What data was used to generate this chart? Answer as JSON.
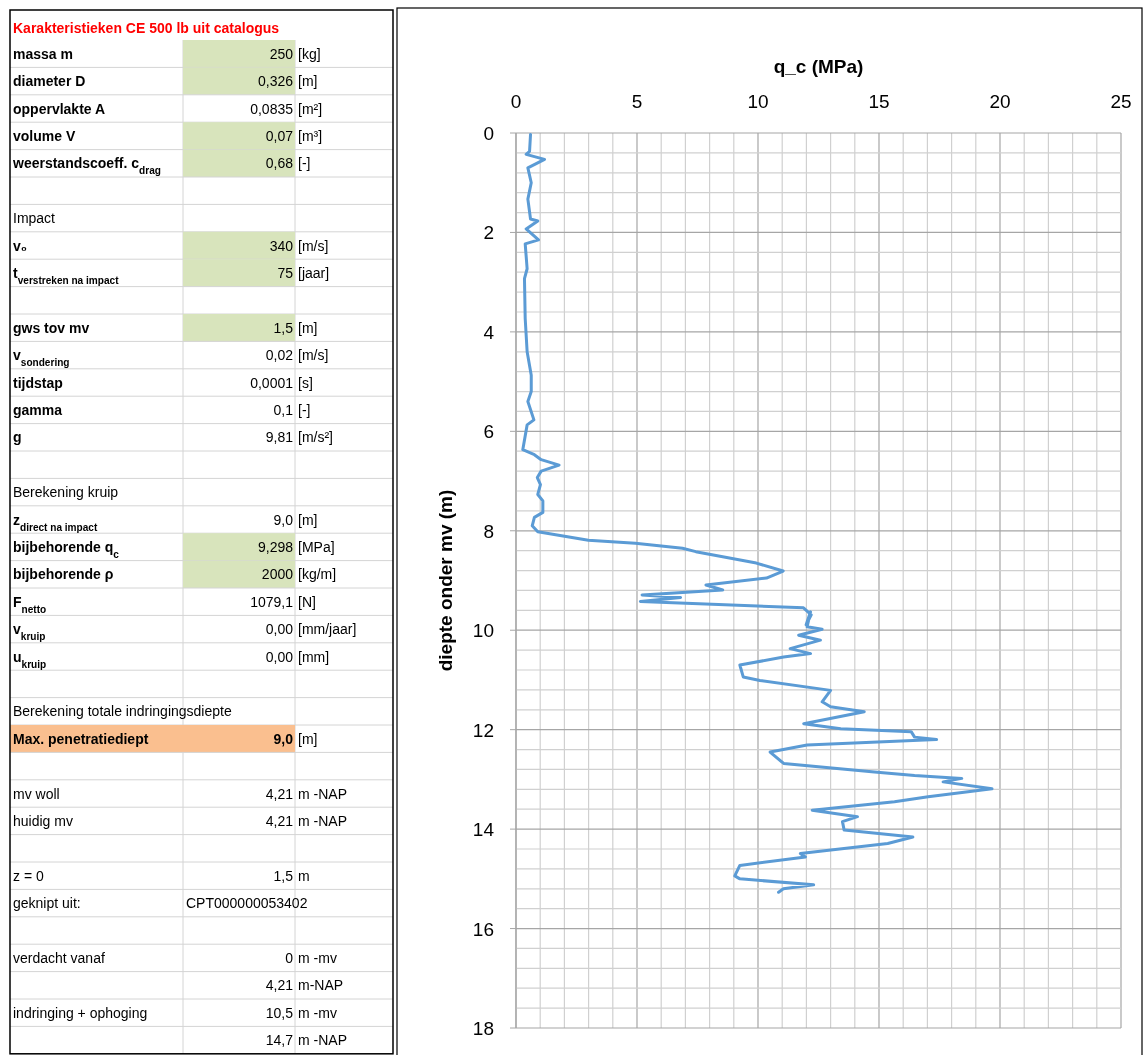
{
  "chart_data": [
    {
      "type": "other",
      "title": "Karakteristieken CE  500 lb uit catalogus",
      "y_categories": [
        "massa m",
        "diameter D",
        "oppervlakte A",
        "volume V",
        "weerstandscoeff. c$_{drag}$",
        null,
        "Impact",
        "v₀",
        "t$_{verstreken na impact}$",
        null,
        "gws tov mv",
        "v$_{sondering}$",
        "tijdstap",
        "gamma",
        "g",
        null,
        "Berekening kruip",
        "z$_{direct na impact}$",
        "bijbehorende q$_{c}$",
        "bijbehorende ρ",
        "F$_{netto}$",
        "v$_{kruip}$",
        "u$_{kruip}$",
        null,
        "Berekening totale indringingsdiepte",
        "Max. penetratiediept",
        null,
        "mv woll",
        "huidig mv",
        null,
        "z = 0",
        "geknipt uit:",
        null,
        "verdacht vanaf",
        null,
        "indringing + ophoging",
        null
      ],
      "cell_labels": [
        [
          "250",
          "[kg]"
        ],
        [
          "0,326",
          "[m]"
        ],
        [
          "0,0835",
          "[m²]"
        ],
        [
          "0,07",
          "[m³]"
        ],
        [
          "0,68",
          "[-]"
        ],
        [
          null,
          null
        ],
        [
          null,
          null
        ],
        [
          "340",
          "[m/s]"
        ],
        [
          "75",
          "[jaar]"
        ],
        [
          null,
          null
        ],
        [
          "1,5",
          "[m]"
        ],
        [
          "0,02",
          "[m/s]"
        ],
        [
          "0,0001",
          "[s]"
        ],
        [
          "0,1",
          "[-]"
        ],
        [
          "9,81",
          "[m/s²]"
        ],
        [
          null,
          null
        ],
        [
          null,
          null
        ],
        [
          "9,0",
          "[m]"
        ],
        [
          "9,298",
          "[MPa]"
        ],
        [
          "2000",
          "[kg/m]"
        ],
        [
          "1079,1",
          "[N]"
        ],
        [
          "0,00",
          "[mm/jaar]"
        ],
        [
          "0,00",
          "[mm]"
        ],
        [
          null,
          null
        ],
        [
          null,
          null
        ],
        [
          "9,0",
          "[m]"
        ],
        [
          null,
          null
        ],
        [
          "4,21",
          "m -NAP"
        ],
        [
          "4,21",
          "m -NAP"
        ],
        [
          null,
          null
        ],
        [
          "1,5",
          "m"
        ],
        [
          "CPT000000053402",
          null
        ],
        [
          null,
          null
        ],
        [
          "0",
          "m -mv"
        ],
        [
          "4,21",
          "m-NAP"
        ],
        [
          "10,5",
          "m -mv"
        ],
        [
          "14,7",
          "m -NAP"
        ]
      ],
      "colors": [
        "#d8e4bc",
        "#d8e4bc",
        null,
        "#d8e4bc",
        "#d8e4bc",
        null,
        null,
        "#d8e4bc",
        "#d8e4bc",
        null,
        "#d8e4bc",
        null,
        null,
        null,
        null,
        null,
        null,
        null,
        "#d8e4bc",
        "#d8e4bc",
        null,
        null,
        null,
        null,
        null,
        "#fabf8f",
        null,
        null,
        null,
        null,
        null,
        null,
        null,
        null,
        null,
        null,
        null
      ]
    },
    {
      "type": "line",
      "xlabel": "q_c (MPa)",
      "ylabel": "diepte onder mv (m)",
      "grid": true,
      "xlim": [
        0,
        25
      ],
      "ylim": [
        18,
        0
      ],
      "xticks": [
        0,
        {
          "value": 1,
          "label": null
        },
        {
          "value": 2,
          "label": null
        },
        {
          "value": 3,
          "label": null
        },
        {
          "value": 4,
          "label": null
        },
        5,
        {
          "value": 6,
          "label": null
        },
        {
          "value": 7,
          "label": null
        },
        {
          "value": 8,
          "label": null
        },
        {
          "value": 9,
          "label": null
        },
        10,
        {
          "value": 11,
          "label": null
        },
        {
          "value": 12,
          "label": null
        },
        {
          "value": 13,
          "label": null
        },
        {
          "value": 14,
          "label": null
        },
        15,
        {
          "value": 16,
          "label": null
        },
        {
          "value": 17,
          "label": null
        },
        {
          "value": 18,
          "label": null
        },
        {
          "value": 19,
          "label": null
        },
        20,
        {
          "value": 21,
          "label": null
        },
        {
          "value": 22,
          "label": null
        },
        {
          "value": 23,
          "label": null
        },
        {
          "value": 24,
          "label": null
        },
        25
      ],
      "yticks": [
        0,
        {
          "value": 0.4,
          "label": null
        },
        {
          "value": 0.8,
          "label": null
        },
        {
          "value": 1.2,
          "label": null
        },
        {
          "value": 1.6,
          "label": null
        },
        2,
        {
          "value": 2.4,
          "label": null
        },
        {
          "value": 2.8,
          "label": null
        },
        {
          "value": 3.2,
          "label": null
        },
        {
          "value": 3.6,
          "label": null
        },
        4,
        {
          "value": 4.4,
          "label": null
        },
        {
          "value": 4.8,
          "label": null
        },
        {
          "value": 5.2,
          "label": null
        },
        {
          "value": 5.6,
          "label": null
        },
        6,
        {
          "value": 6.4,
          "label": null
        },
        {
          "value": 6.8,
          "label": null
        },
        {
          "value": 7.2,
          "label": null
        },
        {
          "value": 7.6,
          "label": null
        },
        8,
        {
          "value": 8.4,
          "label": null
        },
        {
          "value": 8.8,
          "label": null
        },
        {
          "value": 9.2,
          "label": null
        },
        {
          "value": 9.6,
          "label": null
        },
        10,
        {
          "value": 10.4,
          "label": null
        },
        {
          "value": 10.8,
          "label": null
        },
        {
          "value": 11.2,
          "label": null
        },
        {
          "value": 11.6,
          "label": null
        },
        12,
        {
          "value": 12.4,
          "label": null
        },
        {
          "value": 12.8,
          "label": null
        },
        {
          "value": 13.2,
          "label": null
        },
        {
          "value": 13.6,
          "label": null
        },
        14,
        {
          "value": 14.4,
          "label": null
        },
        {
          "value": 14.8,
          "label": null
        },
        {
          "value": 15.2,
          "label": null
        },
        {
          "value": 15.6,
          "label": null
        },
        16,
        {
          "value": 16.4,
          "label": null
        },
        {
          "value": 16.8,
          "label": null
        },
        {
          "value": 17.2,
          "label": null
        },
        {
          "value": 17.6,
          "label": null
        },
        18
      ],
      "series": [
        {
          "color": "#5b9bd5",
          "x": [
            0.6,
            0.56,
            0.42,
            1.18,
            0.49,
            0.63,
            0.49,
            0.6,
            0.9,
            0.42,
            0.93,
            0.38,
            0.46,
            0.35,
            0.38,
            0.46,
            0.63,
            0.63,
            0.49,
            0.74,
            0.46,
            0.28,
            0.76,
            1.04,
            1.78,
            1.04,
            0.88,
            1.01,
            0.9,
            1.11,
            1.11,
            0.76,
            0.67,
            0.9,
            2.99,
            4.93,
            6.88,
            7.43,
            9.93,
            11.04,
            10.35,
            7.85,
            8.54,
            5.21,
            6.8,
            5.14,
            11.88,
            12.2,
            11.99,
            12.17,
            12.03,
            12.65,
            11.68,
            12.58,
            11.33,
            12.17,
            11.06,
            9.25,
            9.39,
            10.08,
            13.0,
            12.65,
            13.0,
            14.39,
            11.89,
            13.42,
            16.33,
            16.47,
            17.38,
            12.03,
            10.5,
            11.06,
            14.81,
            16.47,
            18.42,
            17.65,
            19.67,
            17.03,
            15.64,
            12.24,
            14.11,
            13.49,
            13.56,
            16.4,
            15.36,
            11.75,
            11.96,
            9.25,
            9.04,
            9.25,
            12.3,
            11.05,
            10.85
          ],
          "values": [
            0.03,
            0.37,
            0.43,
            0.53,
            0.7,
            1.0,
            1.33,
            1.73,
            1.77,
            1.93,
            2.15,
            2.23,
            2.73,
            2.93,
            3.73,
            4.4,
            4.87,
            5.2,
            5.4,
            5.77,
            5.87,
            6.37,
            6.47,
            6.57,
            6.68,
            6.8,
            6.93,
            7.07,
            7.27,
            7.4,
            7.63,
            7.73,
            7.9,
            8.02,
            8.19,
            8.25,
            8.35,
            8.42,
            8.65,
            8.81,
            8.95,
            9.09,
            9.19,
            9.29,
            9.34,
            9.42,
            9.55,
            9.69,
            9.89,
            9.63,
            9.93,
            9.98,
            10.1,
            10.2,
            10.37,
            10.47,
            10.54,
            10.7,
            10.94,
            11.01,
            11.21,
            11.44,
            11.54,
            11.64,
            11.88,
            11.98,
            12.04,
            12.15,
            12.2,
            12.31,
            12.45,
            12.68,
            12.85,
            12.92,
            12.98,
            13.05,
            13.19,
            13.35,
            13.45,
            13.62,
            13.75,
            13.85,
            14.02,
            14.16,
            14.29,
            14.49,
            14.56,
            14.73,
            14.94,
            15.0,
            15.12,
            15.2,
            15.27
          ]
        }
      ]
    }
  ]
}
